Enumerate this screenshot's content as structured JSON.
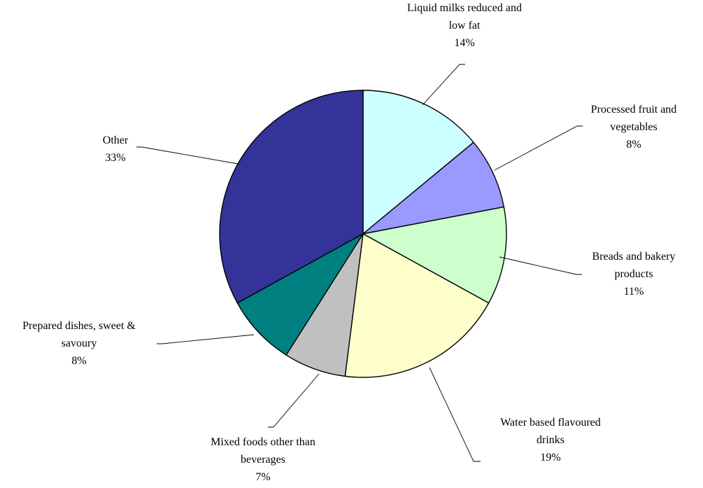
{
  "chart_data": {
    "type": "pie",
    "title": "",
    "legend": "none",
    "slices": [
      {
        "name": "Liquid milks reduced and low fat",
        "label_lines": [
          "Liquid milks reduced and",
          "low fat"
        ],
        "pct_label": "14%",
        "value": 14,
        "color": "#CCFFFF"
      },
      {
        "name": "Processed fruit and vegetables",
        "label_lines": [
          "Processed fruit and",
          "vegetables"
        ],
        "pct_label": "8%",
        "value": 8,
        "color": "#9999FF"
      },
      {
        "name": "Breads and bakery products",
        "label_lines": [
          "Breads and bakery",
          "products"
        ],
        "pct_label": "11%",
        "value": 11,
        "color": "#CCFFCC"
      },
      {
        "name": "Water based flavoured drinks",
        "label_lines": [
          "Water based flavoured",
          "drinks"
        ],
        "pct_label": "19%",
        "value": 19,
        "color": "#FFFFCC"
      },
      {
        "name": "Mixed foods other than beverages",
        "label_lines": [
          "Mixed foods other than",
          "beverages"
        ],
        "pct_label": "7%",
        "value": 7,
        "color": "#C0C0C0"
      },
      {
        "name": "Prepared dishes, sweet & savoury",
        "label_lines": [
          "Prepared dishes, sweet &",
          "savoury"
        ],
        "pct_label": "8%",
        "value": 8,
        "color": "#008080"
      },
      {
        "name": "Other",
        "label_lines": [
          "Other"
        ],
        "pct_label": "33%",
        "value": 33,
        "color": "#333399"
      }
    ]
  }
}
